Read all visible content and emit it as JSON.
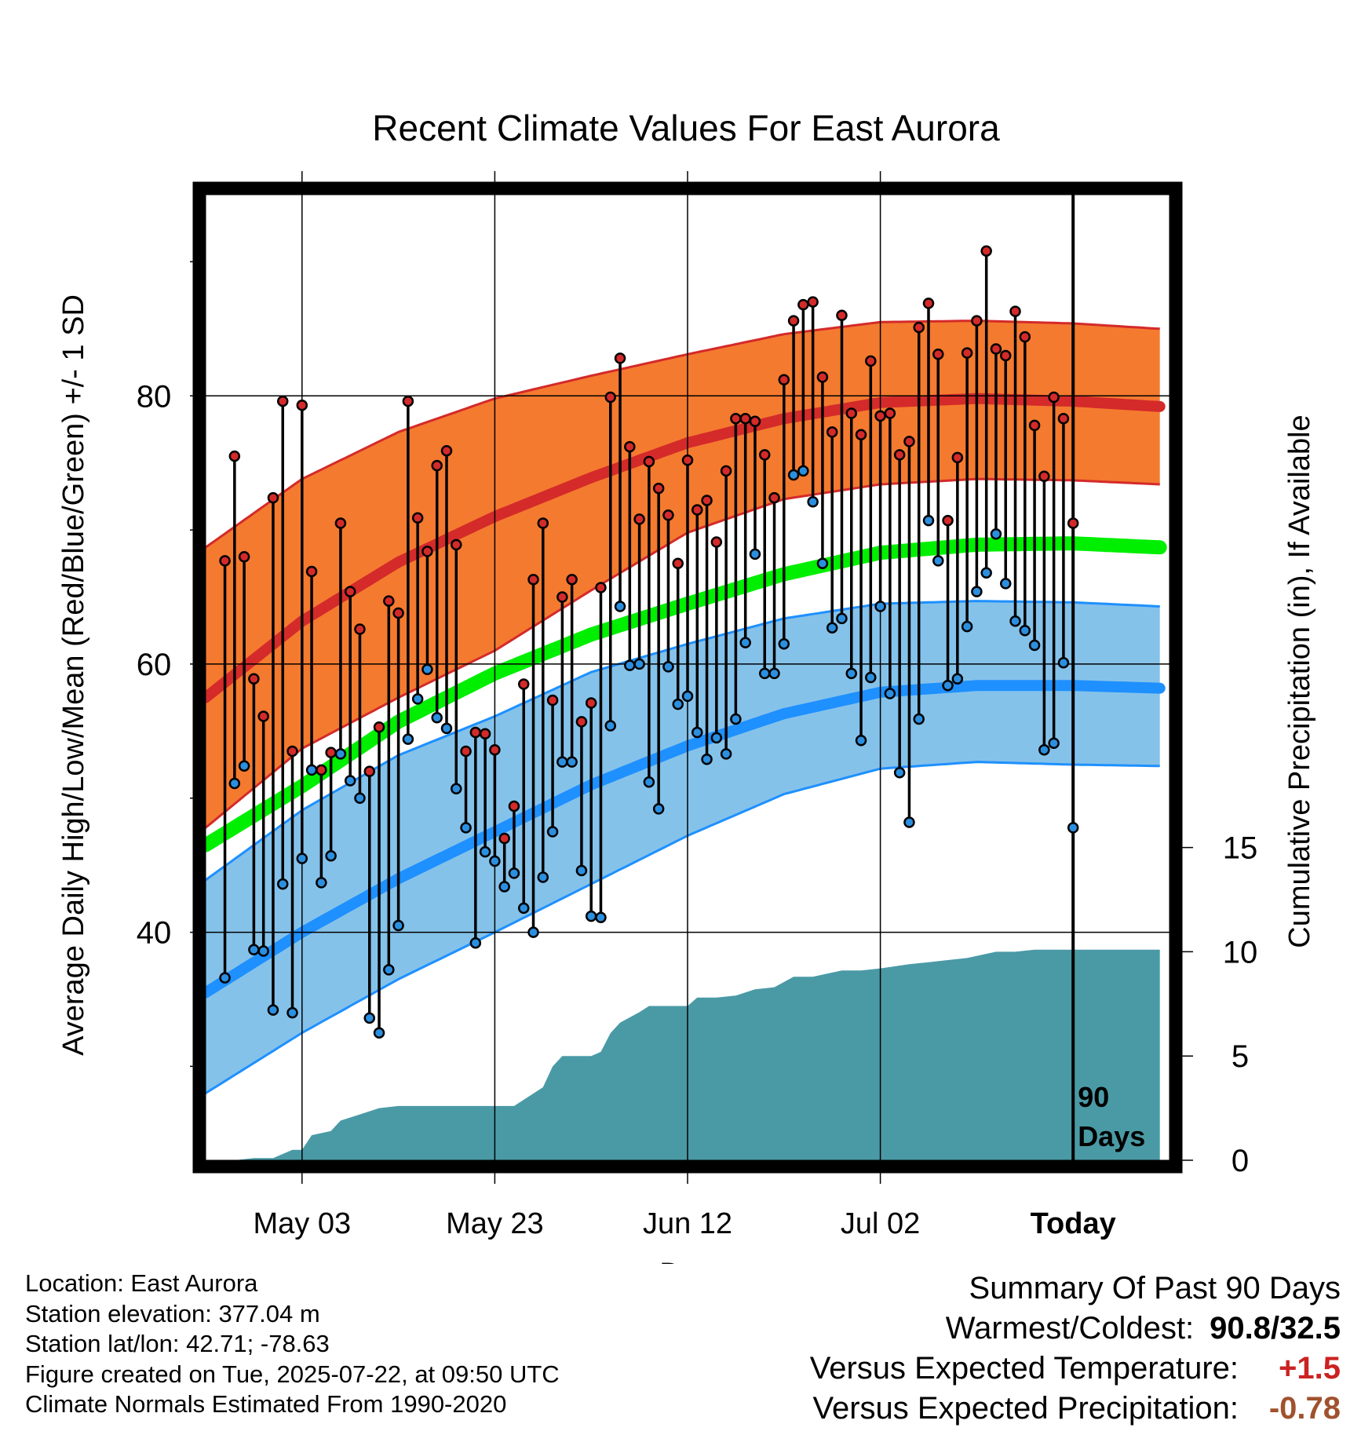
{
  "chart_data": {
    "type": "line",
    "title": "Recent Climate Values For East Aurora",
    "xlabel": "Day",
    "ylabel": "Average Daily High/Low/Mean (Red/Blue/Green) +/- 1 SD",
    "ylabel_right": "Cumulative Precipitation (in), If Available",
    "x_tick_labels": [
      "May 03",
      "May 23",
      "Jun 12",
      "Jul 02",
      "Today"
    ],
    "x_tick_day_offsets": [
      -80,
      -60,
      -40,
      -20,
      0
    ],
    "x_range_days": [
      -90,
      10
    ],
    "ylim": [
      23,
      95
    ],
    "y_ticks": [
      40,
      60,
      80
    ],
    "y_minor_ticks": [
      30,
      50,
      70,
      90
    ],
    "precip_ylim": [
      0,
      50
    ],
    "precip_ticks": [
      0,
      5,
      10,
      15
    ],
    "today_marker_label": [
      "90",
      "Days"
    ],
    "colors": {
      "high_band": "#f47a2f",
      "high_line": "#d42a2a",
      "low_band": "#85c2ea",
      "low_line": "#1e90ff",
      "mean_line": "#00ee00",
      "precip": "#4a9aa6",
      "high_dot": "#d42a2a",
      "low_dot": "#2b8fe0"
    },
    "normals": {
      "days": [
        -90,
        -80,
        -70,
        -60,
        -50,
        -40,
        -30,
        -20,
        -10,
        0,
        9
      ],
      "high_mean": [
        57.5,
        63.2,
        67.6,
        71.0,
        73.9,
        76.5,
        78.3,
        79.5,
        79.8,
        79.6,
        79.2
      ],
      "high_sd_upper": [
        68.7,
        73.8,
        77.3,
        79.8,
        81.5,
        83.1,
        84.6,
        85.5,
        85.6,
        85.4,
        85.0
      ],
      "high_sd_lower": [
        47.8,
        53.7,
        57.5,
        61.0,
        65.5,
        69.8,
        72.3,
        73.4,
        73.8,
        73.7,
        73.4
      ],
      "mean": [
        46.5,
        50.9,
        55.7,
        59.3,
        62.2,
        64.5,
        66.7,
        68.3,
        68.9,
        69.0,
        68.7
      ],
      "low_mean": [
        35.5,
        40.0,
        44.0,
        47.5,
        51.0,
        53.9,
        56.3,
        57.9,
        58.4,
        58.4,
        58.2
      ],
      "low_sd_upper": [
        43.9,
        49.1,
        53.2,
        56.1,
        59.4,
        61.5,
        63.4,
        64.5,
        64.7,
        64.6,
        64.3
      ],
      "low_sd_lower": [
        28.0,
        32.5,
        36.5,
        40.0,
        43.6,
        47.2,
        50.3,
        52.2,
        52.7,
        52.5,
        52.4
      ]
    },
    "daily_high": [
      67.7,
      75.5,
      68.0,
      58.9,
      56.1,
      72.4,
      79.6,
      53.5,
      79.3,
      66.9,
      52.1,
      53.4,
      70.5,
      65.4,
      62.6,
      52.0,
      55.3,
      64.7,
      63.8,
      79.6,
      70.9,
      68.4,
      74.8,
      75.9,
      68.9,
      53.5,
      54.9,
      54.8,
      53.6,
      47.0,
      49.4,
      58.5,
      66.3,
      70.5,
      57.3,
      65.0,
      66.3,
      55.7,
      57.1,
      65.7,
      79.9,
      82.8,
      76.2,
      70.8,
      75.1,
      73.1,
      71.1,
      67.5,
      75.2,
      71.5,
      72.2,
      69.1,
      74.4,
      78.3,
      78.3,
      78.1,
      75.6,
      72.4,
      81.2,
      85.6,
      86.8,
      87.0,
      81.4,
      77.3,
      86.0,
      78.7,
      77.1,
      82.6,
      78.5,
      78.7,
      75.6,
      76.6,
      85.1,
      86.9,
      83.1,
      70.7,
      75.4,
      83.2,
      85.6,
      90.8,
      83.5,
      83.0,
      86.3,
      84.4,
      77.8,
      74.0,
      79.9,
      78.3,
      70.5
    ],
    "daily_low": [
      36.6,
      51.1,
      52.4,
      38.7,
      38.6,
      34.2,
      43.6,
      34.0,
      45.5,
      52.1,
      43.7,
      45.7,
      53.3,
      51.3,
      50.0,
      33.6,
      32.5,
      37.2,
      40.5,
      54.4,
      57.4,
      59.6,
      56.0,
      55.2,
      50.7,
      47.8,
      39.2,
      46.0,
      45.3,
      43.4,
      44.4,
      41.8,
      40.0,
      44.1,
      47.5,
      52.7,
      52.7,
      44.6,
      41.2,
      41.1,
      55.4,
      64.3,
      59.9,
      60.0,
      51.2,
      49.2,
      59.8,
      57.0,
      57.6,
      54.9,
      52.9,
      54.5,
      53.3,
      55.9,
      61.6,
      68.2,
      59.3,
      59.3,
      61.5,
      74.1,
      74.4,
      72.1,
      67.5,
      62.7,
      63.4,
      59.3,
      54.3,
      59.0,
      64.3,
      57.8,
      51.9,
      48.2,
      55.9,
      70.7,
      67.7,
      58.4,
      58.9,
      62.8,
      65.4,
      66.8,
      69.7,
      66.0,
      63.2,
      62.5,
      61.4,
      53.6,
      54.1,
      60.1,
      47.8
    ],
    "cumulative_precip": [
      [
        -90,
        0.0
      ],
      [
        -87,
        0.0
      ],
      [
        -85,
        0.1
      ],
      [
        -83,
        0.1
      ],
      [
        -81,
        0.5
      ],
      [
        -80,
        0.5
      ],
      [
        -79,
        1.2
      ],
      [
        -77,
        1.4
      ],
      [
        -76,
        1.9
      ],
      [
        -74,
        2.2
      ],
      [
        -72,
        2.5
      ],
      [
        -70,
        2.6
      ],
      [
        -68,
        2.6
      ],
      [
        -66,
        2.6
      ],
      [
        -64,
        2.6
      ],
      [
        -62,
        2.6
      ],
      [
        -60,
        2.6
      ],
      [
        -58,
        2.6
      ],
      [
        -56,
        3.2
      ],
      [
        -55,
        3.5
      ],
      [
        -54,
        4.5
      ],
      [
        -53,
        5.0
      ],
      [
        -52,
        5.0
      ],
      [
        -51,
        5.0
      ],
      [
        -50,
        5.0
      ],
      [
        -49,
        5.2
      ],
      [
        -48,
        6.1
      ],
      [
        -47,
        6.6
      ],
      [
        -45,
        7.1
      ],
      [
        -44,
        7.4
      ],
      [
        -42,
        7.4
      ],
      [
        -40,
        7.4
      ],
      [
        -39,
        7.8
      ],
      [
        -37,
        7.8
      ],
      [
        -35,
        7.9
      ],
      [
        -33,
        8.2
      ],
      [
        -31,
        8.3
      ],
      [
        -29,
        8.8
      ],
      [
        -27,
        8.8
      ],
      [
        -24,
        9.1
      ],
      [
        -22,
        9.1
      ],
      [
        -20,
        9.2
      ],
      [
        -17,
        9.4
      ],
      [
        -15,
        9.5
      ],
      [
        -13,
        9.6
      ],
      [
        -11,
        9.7
      ],
      [
        -8,
        10.0
      ],
      [
        -6,
        10.0
      ],
      [
        -4,
        10.1
      ],
      [
        -2,
        10.1
      ],
      [
        0,
        10.1
      ],
      [
        9,
        10.1
      ]
    ]
  },
  "footer": {
    "location": "Location: East Aurora",
    "elevation": "Station elevation: 377.04 m",
    "latlon": "Station lat/lon: 42.71; -78.63",
    "created": "Figure created on Tue, 2025-07-22, at 09:50 UTC",
    "normals": "Climate Normals Estimated From 1990-2020"
  },
  "summary": {
    "heading": "Summary Of Past 90 Days",
    "warmest_label": "Warmest/Coldest:",
    "warmest_value": "90.8/32.5",
    "temp_label": "Versus Expected Temperature:",
    "temp_value": "+1.5",
    "temp_color": "#cc2222",
    "precip_label": "Versus Expected Precipitation:",
    "precip_value": "-0.78",
    "precip_color": "#a0522d"
  }
}
